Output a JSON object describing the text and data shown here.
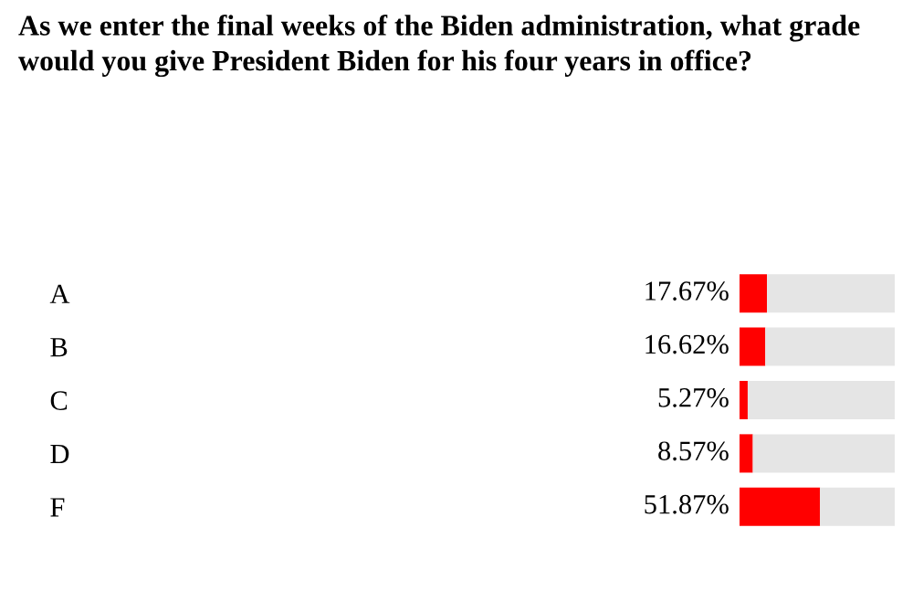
{
  "chart_data": {
    "type": "bar",
    "orientation": "horizontal",
    "stacked": true,
    "title": "As we enter the final weeks of the Biden administration, what grade would you give President Biden for his four years in office?",
    "categories": [
      "A",
      "B",
      "C",
      "D",
      "F"
    ],
    "xlim": [
      0,
      100
    ],
    "tick_labels": "y",
    "grid": false,
    "legend": false,
    "series": [
      {
        "color": "#ff0000",
        "values": [
          17.67,
          16.62,
          5.27,
          8.57,
          51.87
        ],
        "value_labels": [
          "17.67%",
          "16.62%",
          "5.27%",
          "8.57%",
          "51.87%"
        ]
      },
      {
        "color": "#e5e5e5",
        "values": [
          82.33,
          83.38,
          94.73,
          91.43,
          48.13
        ]
      }
    ]
  }
}
